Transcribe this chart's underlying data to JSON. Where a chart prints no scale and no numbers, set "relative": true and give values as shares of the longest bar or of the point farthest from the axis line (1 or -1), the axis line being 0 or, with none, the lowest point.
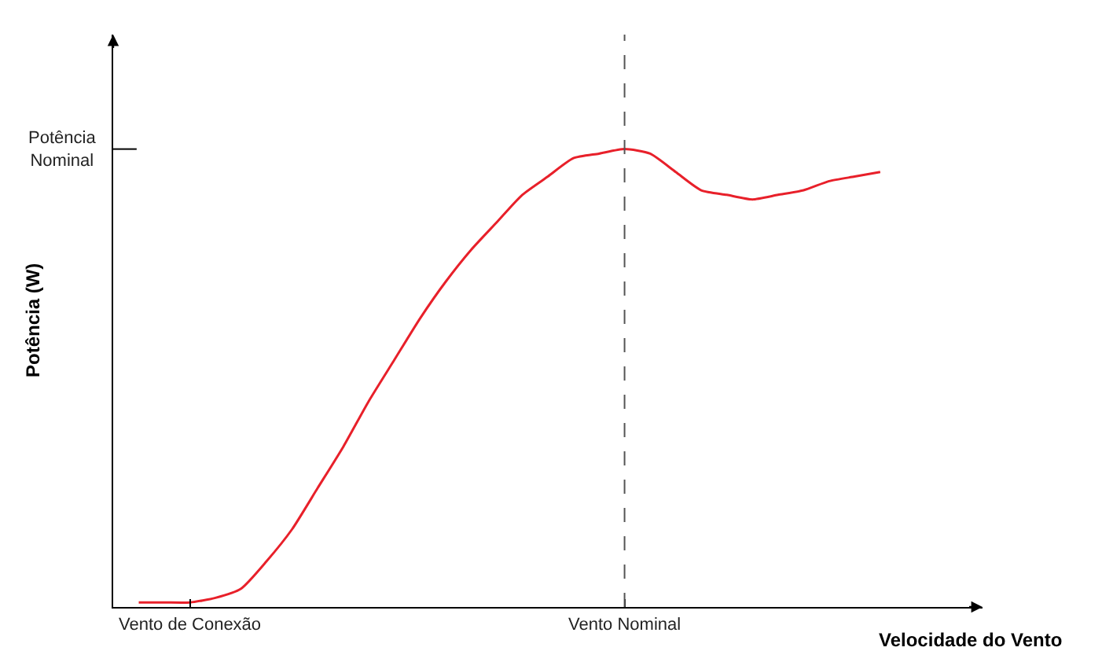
{
  "chart_data": {
    "type": "line",
    "relative": true,
    "xlabel": "Velocidade do Vento",
    "ylabel": "Potência (W)",
    "categories": [
      null,
      null,
      "Vento de Conexão",
      null,
      null,
      null,
      null,
      null,
      null,
      null,
      null,
      null,
      null,
      null,
      null,
      null,
      null,
      null,
      null,
      "Vento Nominal",
      null,
      null,
      null,
      null,
      null,
      null,
      null,
      null,
      null,
      null
    ],
    "series": [
      {
        "color": "#e8202a",
        "values": [
          0.01,
          0.01,
          0.01,
          0.02,
          0.04,
          0.1,
          0.17,
          0.26,
          0.35,
          0.45,
          0.54,
          0.63,
          0.71,
          0.78,
          0.84,
          0.9,
          0.94,
          0.98,
          0.99,
          1.0,
          0.99,
          0.95,
          0.91,
          0.9,
          0.89,
          0.9,
          0.91,
          0.93,
          0.94,
          0.95
        ]
      }
    ],
    "annotations": [
      "Potência Nominal"
    ],
    "ref_lines": [
      {
        "axis": "x",
        "value": "Vento Nominal",
        "color": "#555555",
        "line_style": "dashed"
      }
    ],
    "marker": "none",
    "line_style": "solid"
  }
}
